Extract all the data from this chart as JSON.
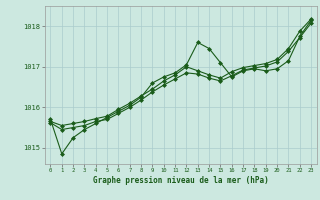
{
  "background_color": "#cce8e0",
  "grid_color": "#aacccc",
  "line_color": "#1a5c1a",
  "marker_color": "#1a5c1a",
  "text_color": "#1a5c1a",
  "title": "Graphe pression niveau de la mer (hPa)",
  "x_values": [
    0,
    1,
    2,
    3,
    4,
    5,
    6,
    7,
    8,
    9,
    10,
    11,
    12,
    13,
    14,
    15,
    16,
    17,
    18,
    19,
    20,
    21,
    22,
    23
  ],
  "ylim": [
    1014.6,
    1018.5
  ],
  "yticks": [
    1015,
    1016,
    1017,
    1018
  ],
  "series1": [
    1015.7,
    1014.85,
    1015.25,
    1015.45,
    1015.6,
    1015.75,
    1015.9,
    1016.05,
    1016.25,
    1016.6,
    1016.75,
    1016.85,
    1017.05,
    1017.6,
    1017.45,
    1017.1,
    1016.75,
    1016.9,
    1016.95,
    1016.9,
    1016.95,
    1017.15,
    1017.75,
    1018.15
  ],
  "series2": [
    1015.65,
    1015.55,
    1015.6,
    1015.65,
    1015.72,
    1015.78,
    1015.95,
    1016.1,
    1016.28,
    1016.45,
    1016.65,
    1016.8,
    1017.0,
    1016.9,
    1016.8,
    1016.72,
    1016.88,
    1016.98,
    1017.03,
    1017.08,
    1017.18,
    1017.45,
    1017.88,
    1018.18
  ],
  "series3": [
    1015.62,
    1015.45,
    1015.5,
    1015.55,
    1015.65,
    1015.7,
    1015.85,
    1016.0,
    1016.18,
    1016.38,
    1016.55,
    1016.7,
    1016.85,
    1016.82,
    1016.72,
    1016.65,
    1016.78,
    1016.92,
    1016.97,
    1017.02,
    1017.12,
    1017.38,
    1017.72,
    1018.08
  ]
}
